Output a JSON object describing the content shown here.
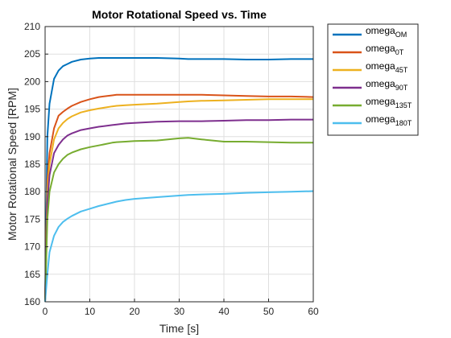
{
  "chart_data": {
    "type": "line",
    "title": "Motor Rotational Speed vs. Time",
    "xlabel": "Time [s]",
    "ylabel": "Motor Rotational Speed [RPM]",
    "xlim": [
      0,
      60
    ],
    "ylim": [
      160,
      210
    ],
    "xticks": [
      0,
      10,
      20,
      30,
      40,
      50,
      60
    ],
    "yticks": [
      160,
      165,
      170,
      175,
      180,
      185,
      190,
      195,
      200,
      205,
      210
    ],
    "grid": true,
    "legend_position": "outside-top-right",
    "x": [
      0,
      0.5,
      1,
      2,
      3,
      4,
      5,
      6,
      8,
      10,
      12,
      15,
      16,
      18,
      20,
      25,
      30,
      32,
      35,
      40,
      45,
      50,
      55,
      60
    ],
    "series": [
      {
        "name": "omega",
        "subscript": "OM",
        "color": "#0072BD",
        "values": [
          160,
          190,
          196,
          200.5,
          202,
          202.8,
          203.2,
          203.6,
          204,
          204.2,
          204.3,
          204.3,
          204.3,
          204.3,
          204.3,
          204.3,
          204.2,
          204.1,
          204.1,
          204.1,
          204.0,
          204.0,
          204.1,
          204.1
        ]
      },
      {
        "name": "omega",
        "subscript": "0T",
        "color": "#D95319",
        "values": [
          160,
          182,
          187,
          191.5,
          193.8,
          194.5,
          195.1,
          195.6,
          196.3,
          196.8,
          197.2,
          197.5,
          197.6,
          197.6,
          197.6,
          197.6,
          197.6,
          197.6,
          197.6,
          197.5,
          197.4,
          197.3,
          197.3,
          197.2
        ]
      },
      {
        "name": "omega",
        "subscript": "45T",
        "color": "#EDB120",
        "values": [
          160,
          180,
          185,
          189.5,
          191.5,
          192.5,
          193.2,
          193.7,
          194.4,
          194.8,
          195.1,
          195.5,
          195.6,
          195.7,
          195.8,
          196.0,
          196.3,
          196.4,
          196.5,
          196.6,
          196.7,
          196.8,
          196.8,
          196.8
        ]
      },
      {
        "name": "omega",
        "subscript": "90T",
        "color": "#7E2F8E",
        "values": [
          160,
          178,
          183,
          187,
          188.5,
          189.5,
          190.2,
          190.6,
          191.2,
          191.5,
          191.8,
          192.1,
          192.2,
          192.4,
          192.5,
          192.7,
          192.8,
          192.8,
          192.8,
          192.9,
          193.0,
          193.0,
          193.1,
          193.1
        ]
      },
      {
        "name": "omega",
        "subscript": "135T",
        "color": "#77AC30",
        "values": [
          160,
          175,
          180,
          183.5,
          185,
          186,
          186.7,
          187.1,
          187.7,
          188.1,
          188.4,
          188.9,
          189.0,
          189.1,
          189.2,
          189.3,
          189.7,
          189.8,
          189.5,
          189.1,
          189.1,
          189.0,
          188.9,
          188.9
        ]
      },
      {
        "name": "omega",
        "subscript": "180T",
        "color": "#4DBEEE",
        "values": [
          160,
          165,
          169,
          172,
          173.6,
          174.5,
          175.1,
          175.6,
          176.4,
          176.9,
          177.4,
          178.0,
          178.2,
          178.5,
          178.7,
          179.0,
          179.3,
          179.4,
          179.5,
          179.6,
          179.8,
          179.9,
          180.0,
          180.1
        ]
      }
    ]
  }
}
